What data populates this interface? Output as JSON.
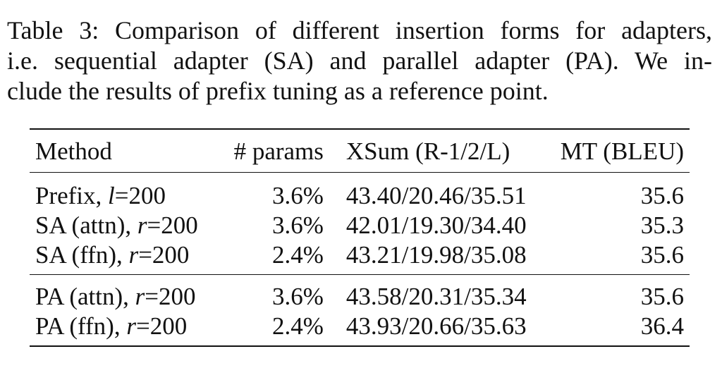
{
  "caption": {
    "line1": "Table 3: Comparison of different insertion forms for adapters,",
    "line2": "i.e. sequential adapter (SA) and parallel adapter (PA). We in-",
    "line3": "clude the results of prefix tuning as a reference point."
  },
  "table": {
    "headers": [
      "Method",
      "# params",
      "XSum (R-1/2/L)",
      "MT (BLEU)"
    ],
    "group1": [
      {
        "method": "Prefix, ",
        "var": "l",
        "eq": "=200",
        "params": "3.6%",
        "xsum": "43.40/20.46/35.51",
        "mt": "35.6"
      },
      {
        "method": "SA (attn), ",
        "var": "r",
        "eq": "=200",
        "params": "3.6%",
        "xsum": "42.01/19.30/34.40",
        "mt": "35.3"
      },
      {
        "method": "SA (ffn), ",
        "var": "r",
        "eq": "=200",
        "params": "2.4%",
        "xsum": "43.21/19.98/35.08",
        "mt": "35.6"
      }
    ],
    "group2": [
      {
        "method": "PA (attn), ",
        "var": "r",
        "eq": "=200",
        "params": "3.6%",
        "xsum": "43.58/20.31/35.34",
        "mt": "35.6"
      },
      {
        "method": "PA (ffn), ",
        "var": "r",
        "eq": "=200",
        "params": "2.4%",
        "xsum": "43.93/20.66/35.63",
        "mt": "36.4"
      }
    ]
  }
}
